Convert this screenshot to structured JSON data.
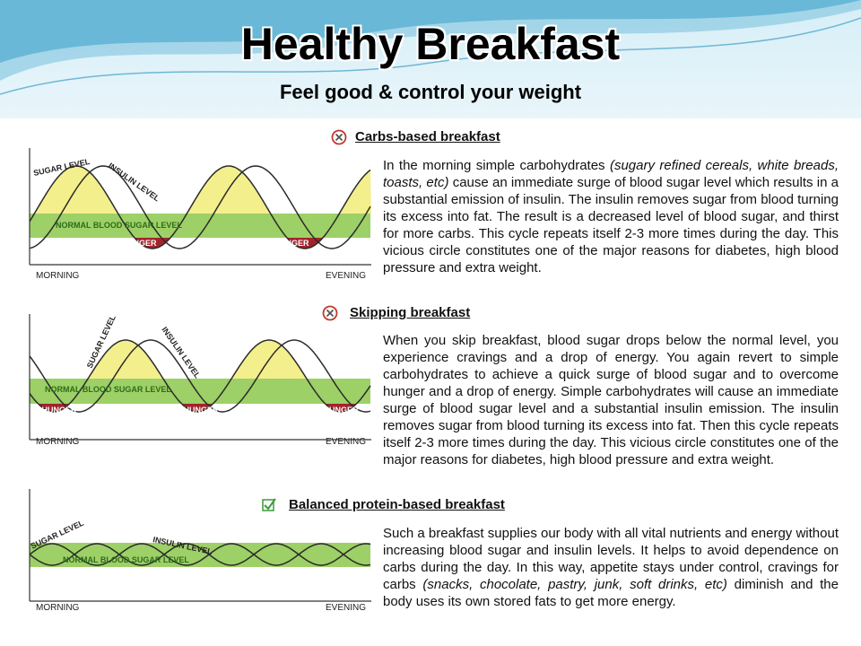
{
  "header": {
    "title": "Healthy Breakfast",
    "subtitle": "Feel good & control your weight"
  },
  "sections": [
    {
      "heading": "Carbs-based breakfast",
      "diagram": {
        "sugar_label": "SUGAR LEVEL",
        "insulin_label": "INSULIN LEVEL",
        "normal_label": "NORMAL BLOOD SUGAR LEVEL",
        "hunger_labels": [
          "HUNGER",
          "HUNGER"
        ],
        "start_label": "MORNING",
        "end_label": "EVENING"
      },
      "paragraph": [
        {
          "text": "In the morning simple carbohydrates "
        },
        {
          "text": "(sugary refined cereals, white breads, toasts, etc)",
          "italic": true
        },
        {
          "text": " cause an immediate surge of blood sugar level which results in a substantial emission of insulin. The insulin removes sugar from blood turning its excess into fat. The result is a decreased level of blood sugar, and thirst for more carbs. This cycle repeats itself 2-3 more times during the day. This vicious circle constitutes one of the major reasons for diabetes, high blood pressure and extra weight."
        }
      ]
    },
    {
      "heading": "Skipping breakfast",
      "diagram": {
        "sugar_label": "SUGAR LEVEL",
        "insulin_label": "INSULIN LEVEL",
        "normal_label": "NORMAL BLOOD SUGAR LEVEL",
        "hunger_labels": [
          "HUNGER",
          "HUNGER",
          "HUNGER"
        ],
        "start_label": "MORNING",
        "end_label": "EVENING"
      },
      "paragraph": [
        {
          "text": "When you skip breakfast, blood sugar drops below the normal level, you experience cravings and a drop of energy. You again revert to simple carbohydrates to achieve a quick surge of blood sugar and to overcome hunger and a drop of energy. Simple carbohydrates will cause an immediate surge of blood sugar level and a substantial insulin emission. The insulin removes sugar from blood turning its excess into fat. Then this cycle repeats itself 2-3 more times during the day. This vicious circle constitutes one of the major reasons for diabetes, high blood pressure and extra weight."
        }
      ]
    },
    {
      "heading": "Balanced protein-based breakfast",
      "diagram": {
        "sugar_label": "SUGAR LEVEL",
        "insulin_label": "INSULIN LEVEL",
        "normal_label": "NORMAL BLOOD SUGAR LEVEL",
        "start_label": "MORNING",
        "end_label": "EVENING"
      },
      "paragraph": [
        {
          "text": "Such a breakfast supplies our body with all vital nutrients and energy without increasing blood sugar and insulin levels. It helps to avoid dependence on carbs during the day. In this way, appetite stays under control, cravings for carbs "
        },
        {
          "text": "(snacks, chocolate, pastry, junk, soft drinks, etc)",
          "italic": true
        },
        {
          "text": " diminish and the body uses its own stored fats to get more energy."
        }
      ]
    }
  ]
}
